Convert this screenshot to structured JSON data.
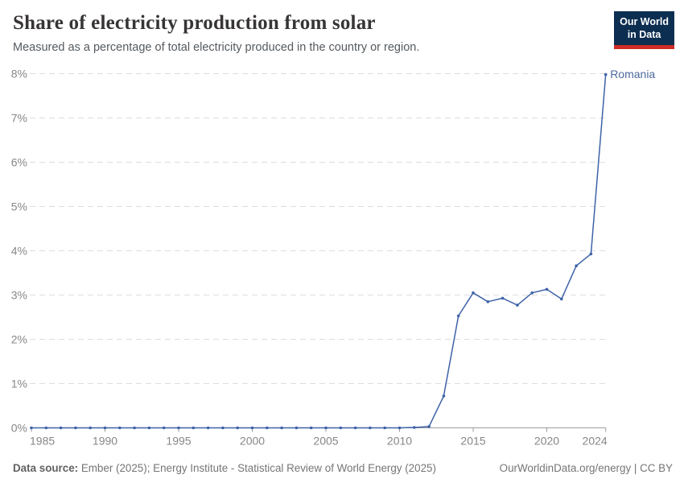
{
  "header": {
    "title": "Share of electricity production from solar",
    "subtitle": "Measured as a percentage of total electricity produced in the country or region."
  },
  "logo": {
    "line1": "Our World",
    "line2": "in Data"
  },
  "chart_data": {
    "type": "line",
    "title": "Share of electricity production from solar",
    "xlabel": "",
    "ylabel": "",
    "ylim": [
      0,
      8
    ],
    "yticks": [
      0,
      1,
      2,
      3,
      4,
      5,
      6,
      7,
      8
    ],
    "ytick_suffix": "%",
    "xticks": [
      1985,
      1990,
      1995,
      2000,
      2005,
      2010,
      2015,
      2020,
      2024
    ],
    "grid": "horizontal-dashed",
    "legend_position": "end-of-line-label",
    "end_label": "Romania",
    "x": [
      1985,
      1986,
      1987,
      1988,
      1989,
      1990,
      1991,
      1992,
      1993,
      1994,
      1995,
      1996,
      1997,
      1998,
      1999,
      2000,
      2001,
      2002,
      2003,
      2004,
      2005,
      2006,
      2007,
      2008,
      2009,
      2010,
      2011,
      2012,
      2013,
      2014,
      2015,
      2016,
      2017,
      2018,
      2019,
      2020,
      2021,
      2022,
      2023,
      2024
    ],
    "series": [
      {
        "name": "Romania",
        "color": "#3d62a8",
        "values": [
          0,
          0,
          0,
          0,
          0,
          0,
          0,
          0,
          0,
          0,
          0,
          0,
          0,
          0,
          0,
          0,
          0,
          0,
          0,
          0,
          0,
          0,
          0,
          0,
          0,
          0,
          0.01,
          0.03,
          0.72,
          2.53,
          3.05,
          2.85,
          2.93,
          2.77,
          3.05,
          3.13,
          2.91,
          3.66,
          3.93,
          7.98
        ]
      }
    ]
  },
  "footer": {
    "source_label": "Data source:",
    "source_text": " Ember (2025); Energy Institute - Statistical Review of World Energy (2025)",
    "right_text": "OurWorldinData.org/energy | CC BY"
  },
  "colors": {
    "accent_line": "#3d62a8",
    "accent_label": "#4c6a9c",
    "grid": "#dddddd",
    "axis": "#9c9c9c",
    "tick_text": "#878787",
    "logo_bg": "#0c2e51",
    "logo_bar": "#cf2c27"
  }
}
